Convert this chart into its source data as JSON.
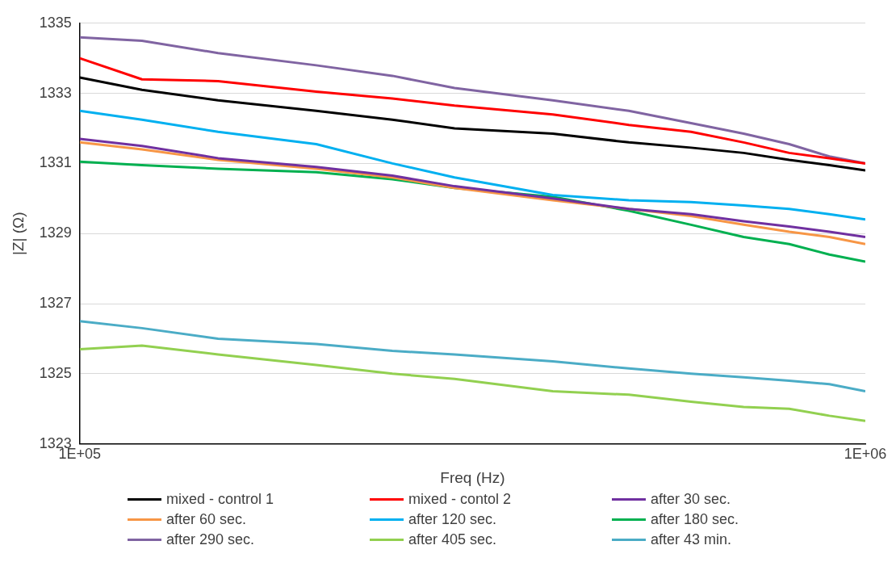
{
  "chart_data": {
    "type": "line",
    "xlabel": "Freq (Hz)",
    "ylabel": "|Z| (Ω)",
    "log": "x",
    "xlim": [
      100000,
      1000000
    ],
    "xticks": [
      {
        "value": 100000,
        "label": "1E+05"
      },
      {
        "value": 1000000,
        "label": "1E+06"
      }
    ],
    "ylim": [
      1323,
      1335
    ],
    "yticks": [
      1323,
      1325,
      1327,
      1329,
      1331,
      1333,
      1335
    ],
    "grid": "y",
    "legend": "bottom",
    "marker": "none",
    "line_style": "solid",
    "x": [
      100000,
      120000,
      150000,
      200000,
      250000,
      300000,
      400000,
      500000,
      600000,
      700000,
      800000,
      900000,
      1000000
    ],
    "series": [
      {
        "name": "mixed - control 1",
        "color": "#000000",
        "values": [
          1333.45,
          1333.1,
          1332.8,
          1332.5,
          1332.25,
          1332.0,
          1331.85,
          1331.6,
          1331.45,
          1331.3,
          1331.1,
          1330.95,
          1330.8
        ]
      },
      {
        "name": "mixed - contol 2",
        "color": "#ff0000",
        "values": [
          1334.0,
          1333.4,
          1333.35,
          1333.05,
          1332.85,
          1332.65,
          1332.4,
          1332.1,
          1331.9,
          1331.6,
          1331.3,
          1331.15,
          1331.0
        ]
      },
      {
        "name": "after 30 sec.",
        "color": "#7030a0",
        "values": [
          1331.7,
          1331.5,
          1331.15,
          1330.9,
          1330.65,
          1330.35,
          1330.0,
          1329.7,
          1329.55,
          1329.35,
          1329.2,
          1329.05,
          1328.9
        ]
      },
      {
        "name": "after 60 sec.",
        "color": "#f79646",
        "values": [
          1331.6,
          1331.4,
          1331.1,
          1330.85,
          1330.6,
          1330.3,
          1329.95,
          1329.7,
          1329.5,
          1329.25,
          1329.05,
          1328.9,
          1328.7
        ]
      },
      {
        "name": "after 120 sec.",
        "color": "#00b0f0",
        "values": [
          1332.5,
          1332.25,
          1331.9,
          1331.55,
          1331.0,
          1330.6,
          1330.1,
          1329.95,
          1329.9,
          1329.8,
          1329.7,
          1329.55,
          1329.4
        ]
      },
      {
        "name": "after 180 sec.",
        "color": "#00b050",
        "values": [
          1331.05,
          1330.95,
          1330.85,
          1330.75,
          1330.55,
          1330.3,
          1330.05,
          1329.65,
          1329.25,
          1328.9,
          1328.7,
          1328.4,
          1328.2
        ]
      },
      {
        "name": "after 290 sec.",
        "color": "#8064a2",
        "values": [
          1334.6,
          1334.5,
          1334.15,
          1333.8,
          1333.5,
          1333.15,
          1332.8,
          1332.5,
          1332.15,
          1331.85,
          1331.55,
          1331.2,
          1331.0
        ]
      },
      {
        "name": "after 405 sec.",
        "color": "#92d050",
        "values": [
          1325.7,
          1325.8,
          1325.55,
          1325.25,
          1325.0,
          1324.85,
          1324.5,
          1324.4,
          1324.2,
          1324.05,
          1324.0,
          1323.8,
          1323.65
        ]
      },
      {
        "name": "after 43 min.",
        "color": "#4bacc6",
        "values": [
          1326.5,
          1326.3,
          1326.0,
          1325.85,
          1325.65,
          1325.55,
          1325.35,
          1325.15,
          1325.0,
          1324.9,
          1324.8,
          1324.7,
          1324.5
        ]
      }
    ]
  }
}
